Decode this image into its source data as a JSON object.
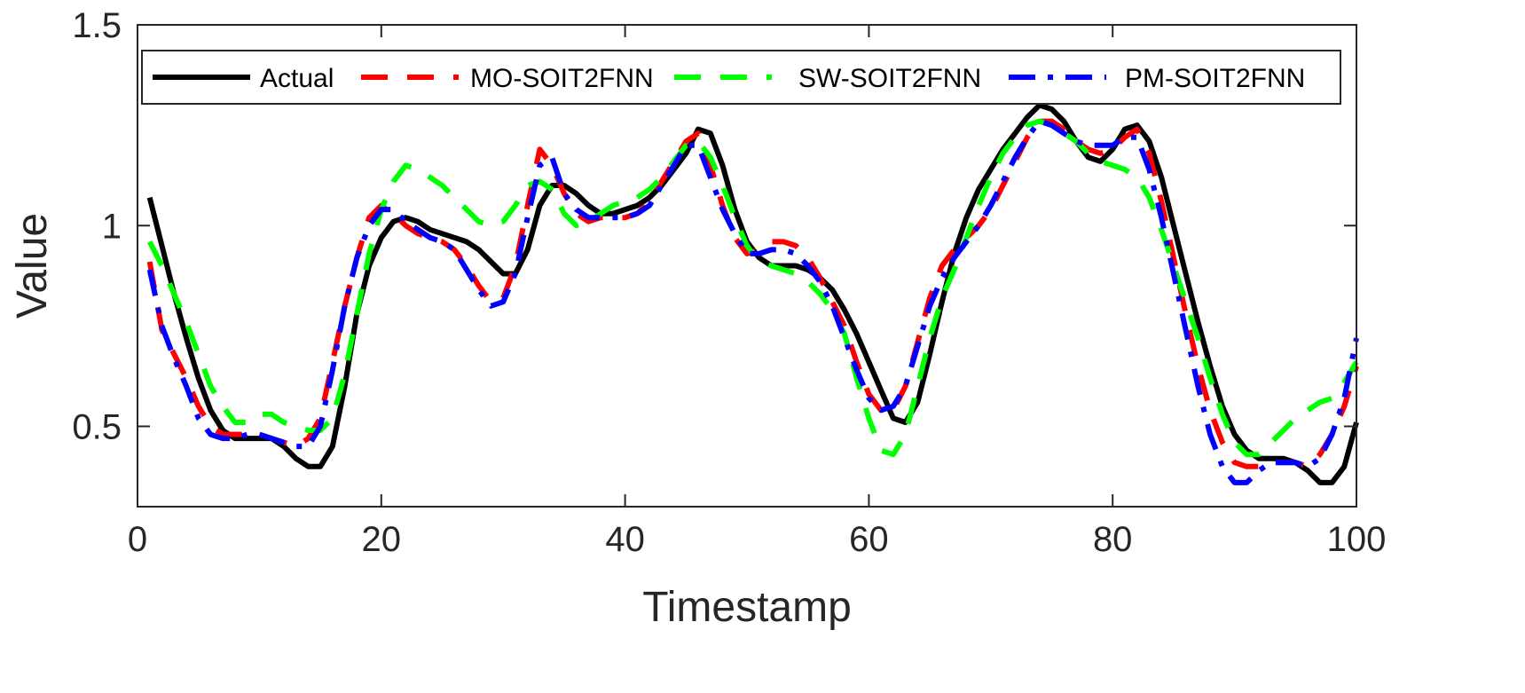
{
  "chart_data": {
    "type": "line",
    "xlabel": "Timestamp",
    "ylabel": "Value",
    "xlim": [
      0,
      100
    ],
    "ylim": [
      0.3,
      1.5
    ],
    "xticks": [
      0,
      20,
      40,
      60,
      80,
      100
    ],
    "yticks": [
      0.5,
      1,
      1.5
    ],
    "xtick_labels": [
      "0",
      "20",
      "40",
      "60",
      "80",
      "100"
    ],
    "ytick_labels": [
      "0.5",
      "1",
      "1.5"
    ],
    "grid": false,
    "legend_position": "top",
    "x": [
      1,
      2,
      3,
      4,
      5,
      6,
      7,
      8,
      9,
      10,
      11,
      12,
      13,
      14,
      15,
      16,
      17,
      18,
      19,
      20,
      21,
      22,
      23,
      24,
      25,
      26,
      27,
      28,
      29,
      30,
      31,
      32,
      33,
      34,
      35,
      36,
      37,
      38,
      39,
      40,
      41,
      42,
      43,
      44,
      45,
      46,
      47,
      48,
      49,
      50,
      51,
      52,
      53,
      54,
      55,
      56,
      57,
      58,
      59,
      60,
      61,
      62,
      63,
      64,
      65,
      66,
      67,
      68,
      69,
      70,
      71,
      72,
      73,
      74,
      75,
      76,
      77,
      78,
      79,
      80,
      81,
      82,
      83,
      84,
      85,
      86,
      87,
      88,
      89,
      90,
      91,
      92,
      93,
      94,
      95,
      96,
      97,
      98,
      99,
      100
    ],
    "series": [
      {
        "name": "Actual",
        "color": "#000000",
        "dash": "solid",
        "values": [
          1.07,
          0.95,
          0.83,
          0.72,
          0.62,
          0.54,
          0.49,
          0.47,
          0.47,
          0.47,
          0.47,
          0.45,
          0.42,
          0.4,
          0.4,
          0.45,
          0.6,
          0.78,
          0.9,
          0.97,
          1.01,
          1.02,
          1.01,
          0.99,
          0.98,
          0.97,
          0.96,
          0.94,
          0.91,
          0.88,
          0.88,
          0.94,
          1.05,
          1.1,
          1.1,
          1.08,
          1.05,
          1.03,
          1.03,
          1.04,
          1.05,
          1.07,
          1.1,
          1.14,
          1.18,
          1.24,
          1.23,
          1.15,
          1.04,
          0.96,
          0.92,
          0.9,
          0.9,
          0.9,
          0.89,
          0.87,
          0.84,
          0.79,
          0.73,
          0.66,
          0.59,
          0.52,
          0.51,
          0.56,
          0.68,
          0.81,
          0.93,
          1.02,
          1.09,
          1.14,
          1.19,
          1.23,
          1.27,
          1.3,
          1.29,
          1.26,
          1.21,
          1.17,
          1.16,
          1.19,
          1.24,
          1.25,
          1.21,
          1.12,
          1.0,
          0.88,
          0.76,
          0.65,
          0.55,
          0.48,
          0.44,
          0.42,
          0.42,
          0.42,
          0.41,
          0.39,
          0.36,
          0.36,
          0.4,
          0.51
        ]
      },
      {
        "name": "MO-SOIT2FNN",
        "color": "#ff0000",
        "dash": "long",
        "values": [
          0.91,
          0.74,
          0.68,
          0.62,
          0.55,
          0.5,
          0.48,
          0.48,
          0.48,
          0.48,
          0.47,
          0.46,
          0.45,
          0.47,
          0.52,
          0.66,
          0.8,
          0.92,
          1.02,
          1.05,
          1.03,
          1.0,
          0.98,
          0.97,
          0.96,
          0.94,
          0.9,
          0.85,
          0.81,
          0.82,
          0.9,
          1.05,
          1.19,
          1.15,
          1.08,
          1.03,
          1.01,
          1.02,
          1.02,
          1.02,
          1.03,
          1.06,
          1.11,
          1.16,
          1.21,
          1.23,
          1.15,
          1.05,
          0.97,
          0.93,
          0.94,
          0.96,
          0.96,
          0.95,
          0.92,
          0.87,
          0.81,
          0.75,
          0.66,
          0.58,
          0.54,
          0.54,
          0.6,
          0.71,
          0.82,
          0.9,
          0.94,
          0.97,
          1.0,
          1.04,
          1.1,
          1.16,
          1.22,
          1.26,
          1.26,
          1.24,
          1.21,
          1.19,
          1.18,
          1.19,
          1.22,
          1.24,
          1.18,
          1.06,
          0.92,
          0.78,
          0.65,
          0.54,
          0.46,
          0.41,
          0.4,
          0.4,
          0.41,
          0.41,
          0.41,
          0.4,
          0.43,
          0.48,
          0.55,
          0.65
        ]
      },
      {
        "name": "SW-SOIT2FNN",
        "color": "#00ff00",
        "dash": "long",
        "values": [
          0.96,
          0.9,
          0.83,
          0.76,
          0.68,
          0.6,
          0.55,
          0.51,
          0.51,
          0.53,
          0.53,
          0.51,
          0.5,
          0.49,
          0.49,
          0.52,
          0.63,
          0.78,
          0.93,
          1.04,
          1.11,
          1.15,
          1.14,
          1.12,
          1.1,
          1.07,
          1.04,
          1.01,
          1.0,
          1.01,
          1.05,
          1.1,
          1.11,
          1.09,
          1.03,
          1.0,
          1.01,
          1.03,
          1.05,
          1.06,
          1.07,
          1.09,
          1.12,
          1.16,
          1.2,
          1.21,
          1.17,
          1.1,
          1.02,
          0.95,
          0.91,
          0.9,
          0.89,
          0.88,
          0.86,
          0.83,
          0.79,
          0.73,
          0.62,
          0.52,
          0.44,
          0.43,
          0.48,
          0.6,
          0.72,
          0.82,
          0.89,
          0.97,
          1.05,
          1.12,
          1.18,
          1.22,
          1.25,
          1.26,
          1.25,
          1.23,
          1.21,
          1.18,
          1.16,
          1.15,
          1.14,
          1.12,
          1.07,
          0.99,
          0.9,
          0.81,
          0.72,
          0.62,
          0.53,
          0.46,
          0.43,
          0.43,
          0.46,
          0.49,
          0.52,
          0.54,
          0.56,
          0.57,
          0.61,
          0.66
        ]
      },
      {
        "name": "PM-SOIT2FNN",
        "color": "#0000ff",
        "dash": "dashdot",
        "values": [
          0.89,
          0.75,
          0.67,
          0.6,
          0.52,
          0.48,
          0.47,
          0.47,
          0.48,
          0.48,
          0.47,
          0.46,
          0.45,
          0.45,
          0.5,
          0.64,
          0.8,
          0.92,
          1.0,
          1.04,
          1.04,
          1.01,
          0.99,
          0.97,
          0.96,
          0.94,
          0.89,
          0.84,
          0.8,
          0.81,
          0.88,
          1.02,
          1.15,
          1.17,
          1.08,
          1.04,
          1.02,
          1.02,
          1.02,
          1.02,
          1.03,
          1.05,
          1.1,
          1.15,
          1.2,
          1.2,
          1.12,
          1.04,
          0.98,
          0.93,
          0.93,
          0.94,
          0.94,
          0.93,
          0.9,
          0.86,
          0.8,
          0.72,
          0.64,
          0.57,
          0.54,
          0.55,
          0.6,
          0.7,
          0.8,
          0.87,
          0.92,
          0.96,
          1.0,
          1.05,
          1.11,
          1.17,
          1.22,
          1.26,
          1.25,
          1.23,
          1.21,
          1.2,
          1.2,
          1.2,
          1.22,
          1.22,
          1.14,
          1.02,
          0.88,
          0.74,
          0.6,
          0.48,
          0.4,
          0.36,
          0.36,
          0.39,
          0.41,
          0.41,
          0.41,
          0.4,
          0.42,
          0.48,
          0.57,
          0.72
        ]
      }
    ]
  }
}
